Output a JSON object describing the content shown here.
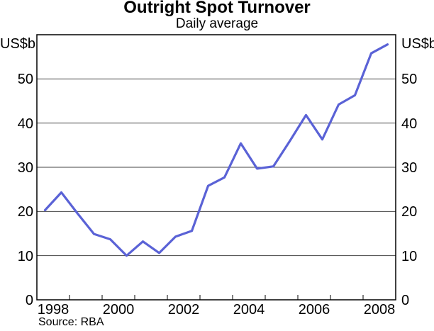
{
  "page": {
    "title": "Outright Spot Turnover",
    "subtitle": "Daily average",
    "unit_left": "US$b",
    "unit_right": "US$b",
    "source": "Source: RBA"
  },
  "chart_data": {
    "type": "line",
    "title": "Outright Spot Turnover",
    "subtitle": "Daily average",
    "ylabel": "US$b",
    "source": "Source: RBA",
    "grid": true,
    "legend": "none",
    "x_axis": {
      "min": 1998,
      "max": 2009,
      "tick_years": [
        1999,
        2000,
        2001,
        2002,
        2003,
        2004,
        2005,
        2006,
        2007,
        2008
      ],
      "label_years": [
        1998,
        2000,
        2002,
        2004,
        2006,
        2008
      ]
    },
    "y_axis": {
      "min": 0,
      "max": 60,
      "labeled_ticks": [
        0,
        10,
        20,
        30,
        40,
        50
      ],
      "unit": "US$b"
    },
    "colors": {
      "line": "#5a62d6",
      "gridline": "#444444",
      "axis": "#000000"
    },
    "series": [
      {
        "name": "Outright spot turnover, daily average (US$b)",
        "color": "#5a62d6",
        "points": [
          {
            "period": "1998 H1",
            "x": 1998.25,
            "value": 20.3
          },
          {
            "period": "1998 H2",
            "x": 1998.75,
            "value": 24.3
          },
          {
            "period": "1999 H1",
            "x": 1999.25,
            "value": 19.5
          },
          {
            "period": "1999 H2",
            "x": 1999.75,
            "value": 14.9
          },
          {
            "period": "2000 H1",
            "x": 2000.25,
            "value": 13.7
          },
          {
            "period": "2000 H2",
            "x": 2000.75,
            "value": 10.0
          },
          {
            "period": "2001 H1",
            "x": 2001.25,
            "value": 13.2
          },
          {
            "period": "2001 H2",
            "x": 2001.75,
            "value": 10.6
          },
          {
            "period": "2002 H1",
            "x": 2002.25,
            "value": 14.3
          },
          {
            "period": "2002 H2",
            "x": 2002.75,
            "value": 15.6
          },
          {
            "period": "2003 H1",
            "x": 2003.25,
            "value": 25.8
          },
          {
            "period": "2003 H2",
            "x": 2003.75,
            "value": 27.7
          },
          {
            "period": "2004 H1",
            "x": 2004.25,
            "value": 35.4
          },
          {
            "period": "2004 H2",
            "x": 2004.75,
            "value": 29.7
          },
          {
            "period": "2005 H1",
            "x": 2005.25,
            "value": 30.2
          },
          {
            "period": "2005 H2",
            "x": 2005.75,
            "value": 35.9
          },
          {
            "period": "2006 H1",
            "x": 2006.25,
            "value": 41.8
          },
          {
            "period": "2006 H2",
            "x": 2006.75,
            "value": 36.3
          },
          {
            "period": "2007 H1",
            "x": 2007.25,
            "value": 44.2
          },
          {
            "period": "2007 H2",
            "x": 2007.75,
            "value": 46.3
          },
          {
            "period": "2008 H1",
            "x": 2008.25,
            "value": 55.8
          },
          {
            "period": "2008 H2",
            "x": 2008.75,
            "value": 57.8
          }
        ]
      }
    ]
  }
}
